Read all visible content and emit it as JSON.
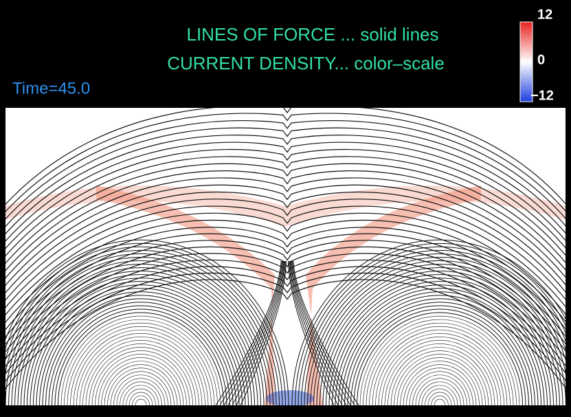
{
  "header": {
    "title_line1": "LINES OF FORCE ... solid lines",
    "title_line2": "CURRENT DENSITY... color–scale",
    "time_label": "Time=45.0"
  },
  "colorbar": {
    "max_label": "12",
    "mid_label": "0",
    "min_label": "−12"
  }
}
